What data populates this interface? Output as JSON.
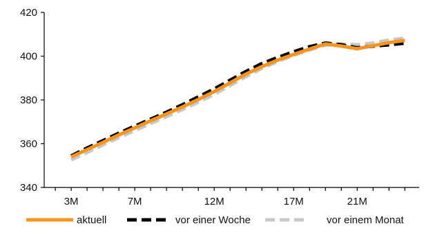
{
  "chart_data": {
    "type": "line",
    "title": "",
    "xlabel": "",
    "ylabel": "",
    "ylim": [
      340,
      420
    ],
    "yticks": [
      340,
      360,
      380,
      400,
      420
    ],
    "x_tick_labels": [
      "3M",
      "7M",
      "12M",
      "17M",
      "21M"
    ],
    "x_tick_positions": [
      3,
      7,
      12,
      17,
      21
    ],
    "xlim": [
      1.3,
      24.9
    ],
    "legend_position": "bottom",
    "grid": false,
    "x": [
      3,
      4,
      5,
      6,
      7,
      8,
      9,
      10,
      11,
      12,
      13,
      14,
      15,
      16,
      17,
      18,
      19,
      20,
      21,
      22,
      23,
      24
    ],
    "series": [
      {
        "name": "aktuell",
        "color": "#f7941d",
        "dash": "solid",
        "values": [
          354,
          357.3,
          360.6,
          364,
          367.2,
          370.5,
          373.6,
          376.8,
          380.2,
          383.8,
          387.8,
          391.8,
          395.2,
          398.2,
          400.8,
          403.2,
          405.6,
          404.6,
          403.4,
          404.8,
          406.2,
          407.2
        ]
      },
      {
        "name": "vor einer Woche",
        "color": "#000000",
        "dash": "dash",
        "values": [
          354.4,
          358,
          361.4,
          364.8,
          368,
          371.2,
          374.4,
          377.8,
          381.4,
          385,
          389,
          393,
          396.6,
          399.4,
          402,
          404.3,
          406,
          405.2,
          403.8,
          404.6,
          405.2,
          406
        ]
      },
      {
        "name": "vor einem Monat",
        "color": "#c8c8c8",
        "dash": "dash",
        "values": [
          352.6,
          356,
          359.4,
          362.8,
          366,
          369.2,
          372.4,
          375.6,
          379,
          382.6,
          386.6,
          390.6,
          394.4,
          397.6,
          400.4,
          402.8,
          405,
          405.6,
          405.2,
          406,
          407.4,
          408.2
        ]
      }
    ]
  }
}
